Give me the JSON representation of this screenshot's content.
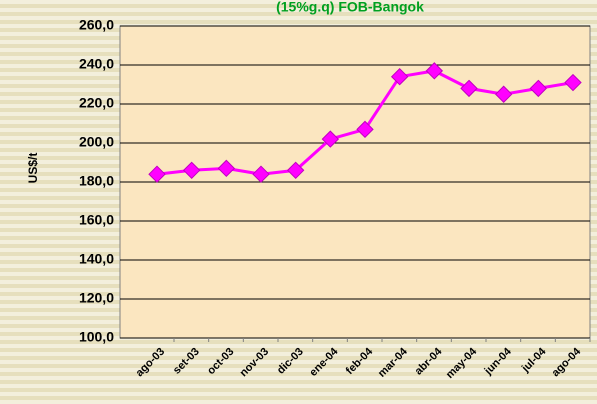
{
  "chart_data": {
    "type": "line",
    "title": "(15%g.q) FOB-Bangok",
    "y_label": "US$/t",
    "categories": [
      "ago-03",
      "set-03",
      "oct-03",
      "nov-03",
      "dic-03",
      "ene-04",
      "feb-04",
      "mar-04",
      "abr-04",
      "may-04",
      "jun-04",
      "jul-04",
      "ago-04"
    ],
    "series": [
      {
        "name": "FOB-Bangok",
        "color": "#ff00ff",
        "values": [
          184,
          186,
          187,
          184,
          186,
          202,
          207,
          234,
          237,
          228,
          225,
          228,
          231
        ]
      }
    ],
    "ylim": [
      100,
      260
    ],
    "yticks": [
      {
        "value": 100,
        "label": "100,0"
      },
      {
        "value": 120,
        "label": "120,0"
      },
      {
        "value": 140,
        "label": "140,0"
      },
      {
        "value": 160,
        "label": "160,0"
      },
      {
        "value": 180,
        "label": "180,0"
      },
      {
        "value": 200,
        "label": "200,0"
      },
      {
        "value": 220,
        "label": "220,0"
      },
      {
        "value": 240,
        "label": "240,0"
      },
      {
        "value": 260,
        "label": "260,0"
      }
    ],
    "grid": true
  }
}
